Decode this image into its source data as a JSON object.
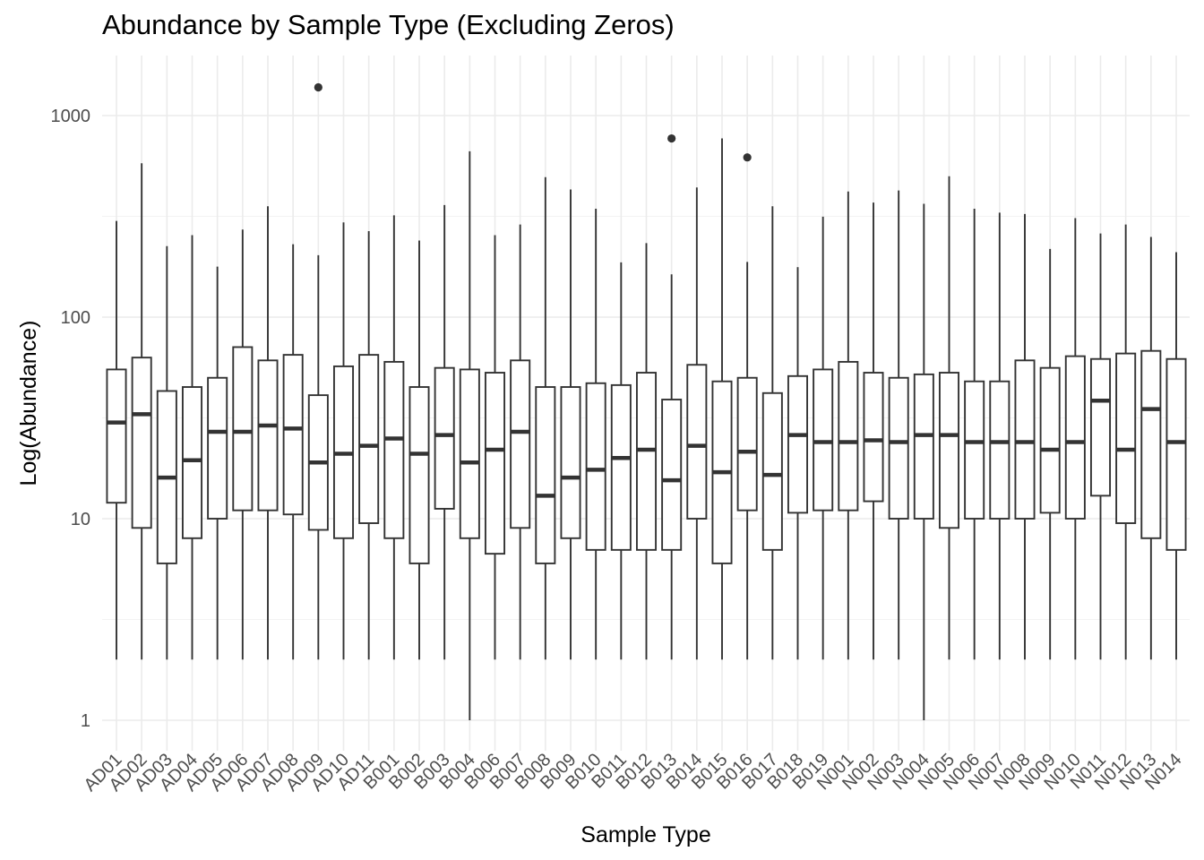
{
  "chart_data": {
    "type": "boxplot",
    "title": "Abundance by Sample Type (Excluding Zeros)",
    "xlabel": "Sample Type",
    "ylabel": "Log(Abundance)",
    "y_scale": "log10",
    "ylim": [
      0.8,
      1700
    ],
    "y_ticks": [
      1,
      10,
      100,
      1000
    ],
    "grid": true,
    "legend": "none",
    "colors": {
      "box_stroke": "#333333",
      "box_fill": "#ffffff",
      "grid": "#ebebeb",
      "tick_text": "#4d4d4d"
    },
    "categories": [
      "AD01",
      "AD02",
      "AD03",
      "AD04",
      "AD05",
      "AD06",
      "AD07",
      "AD08",
      "AD09",
      "AD10",
      "AD11",
      "B001",
      "B002",
      "B003",
      "B004",
      "B006",
      "B007",
      "B008",
      "B009",
      "B010",
      "B011",
      "B012",
      "B013",
      "B014",
      "B015",
      "B016",
      "B017",
      "B018",
      "B019",
      "N001",
      "N002",
      "N003",
      "N004",
      "N005",
      "N006",
      "N007",
      "N008",
      "N009",
      "N010",
      "N011",
      "N012",
      "N013",
      "N014"
    ],
    "boxes": [
      {
        "min": 2,
        "q1": 12,
        "median": 30,
        "q3": 55,
        "max": 300,
        "outliers": []
      },
      {
        "min": 2,
        "q1": 9,
        "median": 33,
        "q3": 63,
        "max": 580,
        "outliers": []
      },
      {
        "min": 2,
        "q1": 6,
        "median": 16,
        "q3": 43,
        "max": 225,
        "outliers": []
      },
      {
        "min": 2,
        "q1": 8,
        "median": 19.5,
        "q3": 45,
        "max": 255,
        "outliers": []
      },
      {
        "min": 2,
        "q1": 10,
        "median": 27,
        "q3": 50,
        "max": 178,
        "outliers": []
      },
      {
        "min": 2,
        "q1": 11,
        "median": 27,
        "q3": 71,
        "max": 272,
        "outliers": []
      },
      {
        "min": 2,
        "q1": 11,
        "median": 29,
        "q3": 61,
        "max": 355,
        "outliers": []
      },
      {
        "min": 2,
        "q1": 10.5,
        "median": 28,
        "q3": 65,
        "max": 230,
        "outliers": []
      },
      {
        "min": 2,
        "q1": 8.8,
        "median": 19,
        "q3": 41,
        "max": 203,
        "outliers": [
          1380
        ]
      },
      {
        "min": 2,
        "q1": 8,
        "median": 21,
        "q3": 57,
        "max": 295,
        "outliers": []
      },
      {
        "min": 2,
        "q1": 9.5,
        "median": 23,
        "q3": 65,
        "max": 267,
        "outliers": []
      },
      {
        "min": 2,
        "q1": 8,
        "median": 25,
        "q3": 60,
        "max": 320,
        "outliers": []
      },
      {
        "min": 2,
        "q1": 6,
        "median": 21,
        "q3": 45,
        "max": 240,
        "outliers": []
      },
      {
        "min": 2,
        "q1": 11.2,
        "median": 26,
        "q3": 56,
        "max": 360,
        "outliers": []
      },
      {
        "min": 1,
        "q1": 8,
        "median": 19,
        "q3": 55,
        "max": 665,
        "outliers": []
      },
      {
        "min": 2,
        "q1": 6.7,
        "median": 22,
        "q3": 53,
        "max": 255,
        "outliers": []
      },
      {
        "min": 2,
        "q1": 9,
        "median": 27,
        "q3": 61,
        "max": 288,
        "outliers": []
      },
      {
        "min": 2,
        "q1": 6,
        "median": 13,
        "q3": 45,
        "max": 495,
        "outliers": []
      },
      {
        "min": 2,
        "q1": 8,
        "median": 16,
        "q3": 45,
        "max": 430,
        "outliers": []
      },
      {
        "min": 2,
        "q1": 7,
        "median": 17.5,
        "q3": 47,
        "max": 345,
        "outliers": []
      },
      {
        "min": 2,
        "q1": 7,
        "median": 20,
        "q3": 46,
        "max": 187,
        "outliers": []
      },
      {
        "min": 2,
        "q1": 7,
        "median": 22,
        "q3": 53,
        "max": 233,
        "outliers": []
      },
      {
        "min": 2,
        "q1": 7,
        "median": 15.5,
        "q3": 39,
        "max": 163,
        "outliers": [
          770
        ]
      },
      {
        "min": 2,
        "q1": 10,
        "median": 23,
        "q3": 58,
        "max": 440,
        "outliers": []
      },
      {
        "min": 2,
        "q1": 6,
        "median": 17,
        "q3": 48,
        "max": 770,
        "outliers": []
      },
      {
        "min": 2,
        "q1": 11,
        "median": 21.5,
        "q3": 50,
        "max": 188,
        "outliers": [
          620
        ]
      },
      {
        "min": 2,
        "q1": 7,
        "median": 16.5,
        "q3": 42,
        "max": 355,
        "outliers": []
      },
      {
        "min": 2,
        "q1": 10.7,
        "median": 26,
        "q3": 51,
        "max": 177,
        "outliers": []
      },
      {
        "min": 2,
        "q1": 11,
        "median": 24,
        "q3": 55,
        "max": 315,
        "outliers": []
      },
      {
        "min": 2,
        "q1": 11,
        "median": 24,
        "q3": 60,
        "max": 420,
        "outliers": []
      },
      {
        "min": 2,
        "q1": 12.2,
        "median": 24.5,
        "q3": 53,
        "max": 370,
        "outliers": []
      },
      {
        "min": 2,
        "q1": 10,
        "median": 24,
        "q3": 50,
        "max": 425,
        "outliers": []
      },
      {
        "min": 1,
        "q1": 10,
        "median": 26,
        "q3": 52,
        "max": 365,
        "outliers": []
      },
      {
        "min": 2,
        "q1": 9,
        "median": 26,
        "q3": 53,
        "max": 500,
        "outliers": []
      },
      {
        "min": 2,
        "q1": 10,
        "median": 24,
        "q3": 48,
        "max": 345,
        "outliers": []
      },
      {
        "min": 2,
        "q1": 10,
        "median": 24,
        "q3": 48,
        "max": 330,
        "outliers": []
      },
      {
        "min": 2,
        "q1": 10,
        "median": 24,
        "q3": 61,
        "max": 325,
        "outliers": []
      },
      {
        "min": 2,
        "q1": 10.7,
        "median": 22,
        "q3": 56,
        "max": 218,
        "outliers": []
      },
      {
        "min": 2,
        "q1": 10,
        "median": 24,
        "q3": 64,
        "max": 310,
        "outliers": []
      },
      {
        "min": 2,
        "q1": 13,
        "median": 38.5,
        "q3": 62,
        "max": 260,
        "outliers": []
      },
      {
        "min": 2,
        "q1": 9.5,
        "median": 22,
        "q3": 66,
        "max": 288,
        "outliers": []
      },
      {
        "min": 2,
        "q1": 8,
        "median": 35,
        "q3": 68,
        "max": 250,
        "outliers": []
      },
      {
        "min": 2,
        "q1": 7,
        "median": 24,
        "q3": 62,
        "max": 210,
        "outliers": []
      }
    ]
  }
}
